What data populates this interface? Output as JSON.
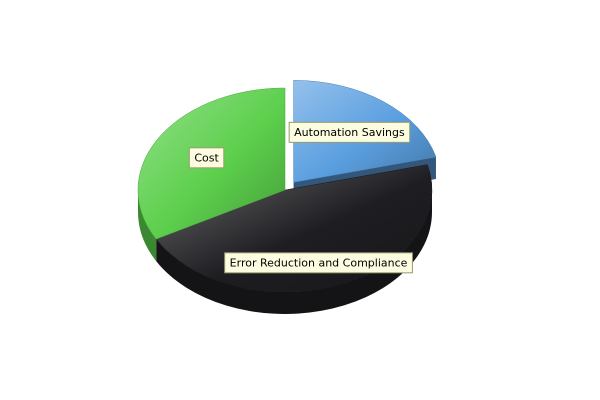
{
  "chart_data": {
    "type": "pie",
    "style": "3d-exploded",
    "title": "",
    "slices": [
      {
        "label": "Automation Savings",
        "value": 21,
        "color": "#5b9fe0",
        "exploded": true
      },
      {
        "label": "Error Reduction and Compliance",
        "value": 46,
        "color": "#1e1e22",
        "exploded": false
      },
      {
        "label": "Cost",
        "value": 33,
        "color": "#5ccf4c",
        "exploded": false
      }
    ],
    "legend": "none",
    "labels": "on-slice"
  }
}
